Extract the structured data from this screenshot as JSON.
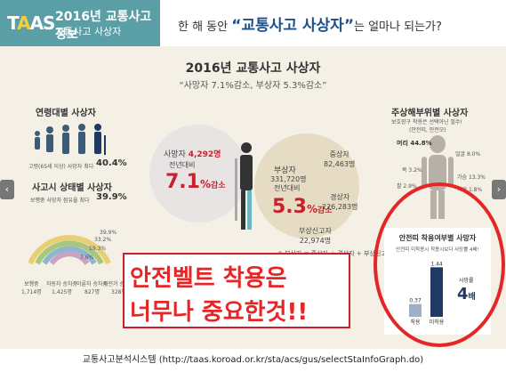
{
  "header": {
    "logo_t": "T",
    "logo_a": "A",
    "logo_as": "AS",
    "title": "2016년 교통사고정보",
    "subtitle": "교통사고 사상자",
    "question_pre": "한 해 동안 ",
    "question_em": "“교통사고 사상자”",
    "question_post": "는 얼마나 되는가?"
  },
  "main": {
    "title": "2016년 교통사고 사상자",
    "subtitle": "“사망자 7.1%감소, 부상자 5.3%감소”",
    "age_title": "연령대별 사상자",
    "age_note": "고령(65세 이상) 사망자 최다",
    "age_pct": "40.4%",
    "status_title": "사고시 상태별 사상자",
    "status_note": "보행중 사망자 점유율 최다",
    "status_pct": "39.9%",
    "arc_labels": [
      "39.9%",
      "33.2%",
      "19.3%",
      "7.6%"
    ],
    "bottom_legend": [
      {
        "name": "보행중",
        "value": "1,714명"
      },
      {
        "name": "자동차 승차중",
        "value": "1,425명"
      },
      {
        "name": "이륜차 승차중",
        "value": "827명"
      },
      {
        "name": "자전거 승차중",
        "value": "328명"
      }
    ],
    "death_label": "사망자",
    "death_value": "4,292명",
    "death_compare": "전년대비",
    "death_pct": "7.1",
    "death_unit": "%",
    "death_dir": "감소",
    "injury_label": "부상자",
    "injury_value": "331,720명",
    "injury_compare": "전년대비",
    "injury_pct": "5.3",
    "injury_unit": "%",
    "injury_dir": "감소",
    "severe": {
      "name": "중상자",
      "value": "82,463명"
    },
    "minor": {
      "name": "경상자",
      "value": "226,283명"
    },
    "report": {
      "name": "부상신고자",
      "value": "22,974명"
    },
    "injury_legend": "※ 부상자 = 중상자 + 경상자 + 부상신고자",
    "body_title": "주상해부위별 사상자",
    "body_note1": "보호장구 착용은 선택아닌 필수!",
    "body_note2": "(안전띠, 안전모)",
    "body_head": "머리 44.8%",
    "body_face": "얼굴 8.0%",
    "body_neck": "목 3.2%",
    "body_chest": "가슴 13.3%",
    "body_arm": "팔 2.9%",
    "body_waist": "허리 1.8%",
    "belt_title": "안전띠 착용여부별 사망자",
    "belt_note": "안전띠 미착용시 착용시보다 사망률 4배!",
    "belt_wear_label": "착용",
    "belt_wear_value": "0.37",
    "belt_nowear_label": "미착용",
    "belt_nowear_value": "1.44",
    "belt_ratio_label": "사망률",
    "belt_ratio_value": "4",
    "belt_ratio_unit": "배",
    "overlay_line1": "안전벨트 착용은",
    "overlay_line2": "너무나 중요한것!!"
  },
  "nav": {
    "left": "‹",
    "right": "›"
  },
  "footer": {
    "text": "교통사고분석시스템 (http://taas.koroad.or.kr/sta/acs/gus/selectStaInfoGraph.do)"
  },
  "colors": {
    "teal": "#5a9fa6",
    "navy": "#1e4f8c",
    "red": "#e42626",
    "dark": "#c8202c",
    "bar_wear": "#9fb0c4",
    "bar_nowear": "#1e3a64"
  }
}
